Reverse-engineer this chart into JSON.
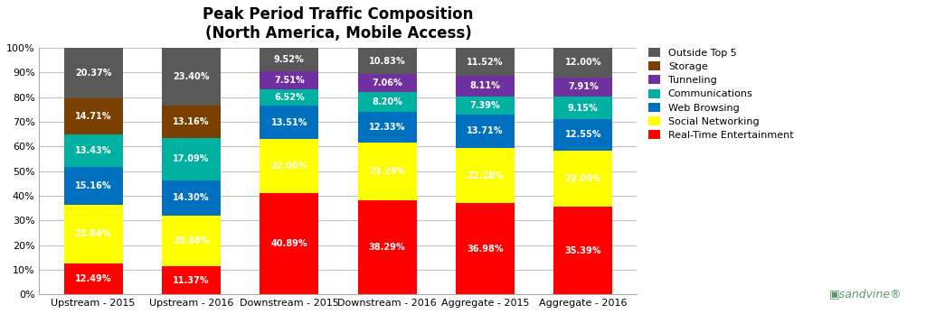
{
  "title": "Peak Period Traffic Composition\n(North America, Mobile Access)",
  "categories": [
    "Upstream - 2015",
    "Upstream - 2016",
    "Downstream - 2015",
    "Downstream - 2016",
    "Aggregate - 2015",
    "Aggregate - 2016"
  ],
  "series": [
    {
      "name": "Real-Time Entertainment",
      "color": "#FF0000",
      "values": [
        12.49,
        11.37,
        40.89,
        38.29,
        36.98,
        35.39
      ]
    },
    {
      "name": "Social Networking",
      "color": "#FFFF00",
      "values": [
        23.84,
        20.68,
        22.06,
        23.29,
        22.28,
        23.0
      ]
    },
    {
      "name": "Web Browsing",
      "color": "#0070C0",
      "values": [
        15.16,
        14.3,
        13.51,
        12.33,
        13.71,
        12.55
      ]
    },
    {
      "name": "Communications",
      "color": "#00B0A0",
      "values": [
        13.43,
        17.09,
        6.52,
        8.2,
        7.39,
        9.15
      ]
    },
    {
      "name": "Tunneling",
      "color": "#7030A0",
      "values": [
        0.0,
        0.0,
        7.51,
        7.06,
        8.11,
        7.91
      ]
    },
    {
      "name": "Storage",
      "color": "#7B3F00",
      "values": [
        14.71,
        13.16,
        0.0,
        0.0,
        0.0,
        0.0
      ]
    },
    {
      "name": "Outside Top 5",
      "color": "#595959",
      "values": [
        20.37,
        23.4,
        9.52,
        10.83,
        11.52,
        12.0
      ]
    }
  ],
  "ylim": [
    0,
    100
  ],
  "yticks": [
    0,
    10,
    20,
    30,
    40,
    50,
    60,
    70,
    80,
    90,
    100
  ],
  "ytick_labels": [
    "0%",
    "10%",
    "20%",
    "30%",
    "40%",
    "50%",
    "60%",
    "70%",
    "80%",
    "90%",
    "100%"
  ],
  "background_color": "#FFFFFF",
  "bar_width": 0.6,
  "title_fontsize": 12,
  "label_fontsize": 7,
  "legend_fontsize": 8,
  "tick_fontsize": 8,
  "grid_color": "#C0C0C0"
}
